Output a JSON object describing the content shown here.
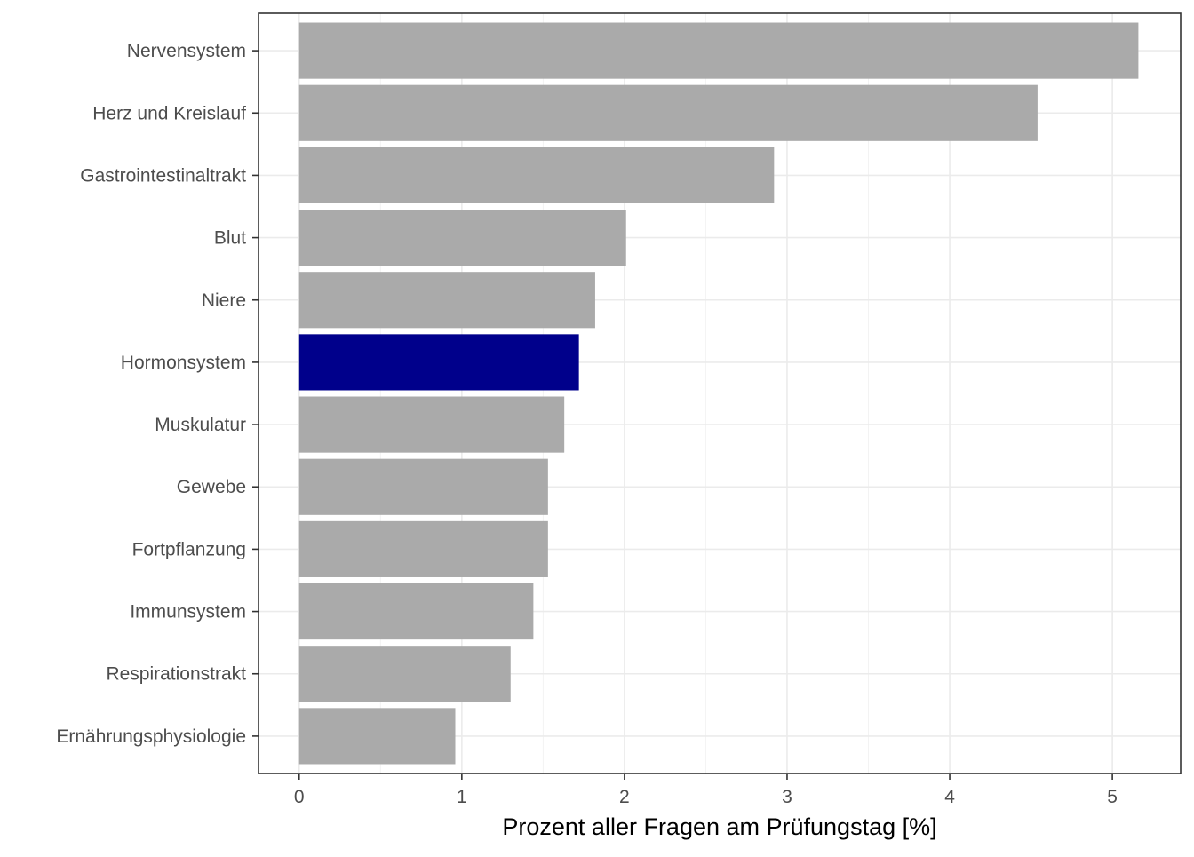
{
  "chart_data": {
    "type": "bar",
    "orientation": "horizontal",
    "title": "",
    "xlabel": "Prozent aller Fragen am Prüfungstag [%]",
    "ylabel": "",
    "xlim": [
      -0.25,
      5.42
    ],
    "xticks": [
      0,
      1,
      2,
      3,
      4,
      5
    ],
    "xtick_labels": [
      "0",
      "1",
      "2",
      "3",
      "4",
      "5"
    ],
    "grid": true,
    "legend": "none",
    "categories": [
      "Nervensystem",
      "Herz und Kreislauf",
      "Gastrointestinaltrakt",
      "Blut",
      "Niere",
      "Hormonsystem",
      "Muskulatur",
      "Gewebe",
      "Fortpflanzung",
      "Immunsystem",
      "Respirationstrakt",
      "Ernährungsphysiologie"
    ],
    "values": [
      5.16,
      4.54,
      2.92,
      2.01,
      1.82,
      1.72,
      1.63,
      1.53,
      1.53,
      1.44,
      1.3,
      0.96
    ],
    "highlight_category": "Hormonsystem",
    "colors": {
      "bar": "#aaaaaa",
      "highlight": "#00008b",
      "grid": "#ebebeb",
      "border": "#333333",
      "text": "#4d4d4d"
    }
  }
}
